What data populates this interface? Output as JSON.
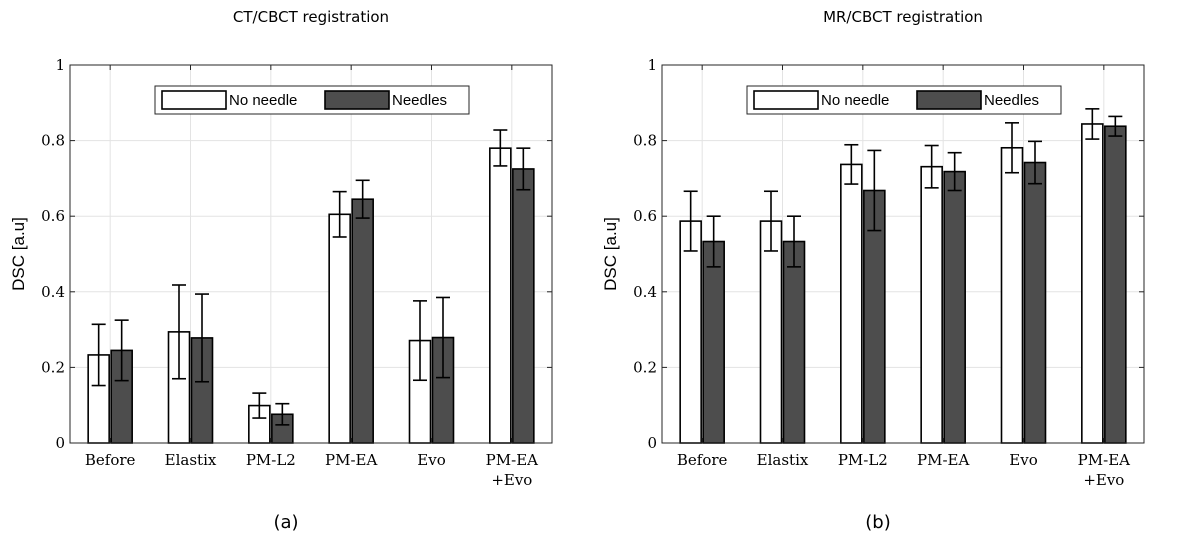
{
  "chart_data": [
    {
      "type": "bar",
      "panel_label": "(a)",
      "title": "CT/CBCT registration",
      "xlabel": "",
      "ylabel": "DSC [a.u]",
      "ylim": [
        0,
        1
      ],
      "yticks": [
        "0",
        "0.2",
        "0.4",
        "0.6",
        "0.8",
        "1"
      ],
      "grid": true,
      "legend": "top-center",
      "categories": [
        [
          "Before"
        ],
        [
          "Elastix"
        ],
        [
          "PM-L2"
        ],
        [
          "PM-EA"
        ],
        [
          "Evo"
        ],
        [
          "PM-EA",
          "+Evo"
        ]
      ],
      "series": [
        {
          "name": "No needle",
          "color": "#ffffff",
          "values": [
            0.233,
            0.294,
            0.099,
            0.605,
            0.271,
            0.78
          ],
          "error_low": [
            0.152,
            0.17,
            0.066,
            0.545,
            0.166,
            0.733
          ],
          "error_high": [
            0.314,
            0.418,
            0.132,
            0.665,
            0.376,
            0.828
          ]
        },
        {
          "name": "Needles",
          "color": "#4d4d4d",
          "values": [
            0.245,
            0.278,
            0.076,
            0.645,
            0.279,
            0.725
          ],
          "error_low": [
            0.165,
            0.162,
            0.048,
            0.595,
            0.173,
            0.67
          ],
          "error_high": [
            0.325,
            0.394,
            0.104,
            0.695,
            0.385,
            0.78
          ]
        }
      ]
    },
    {
      "type": "bar",
      "panel_label": "(b)",
      "title": "MR/CBCT registration",
      "xlabel": "",
      "ylabel": "DSC [a.u]",
      "ylim": [
        0,
        1
      ],
      "yticks": [
        "0",
        "0.2",
        "0.4",
        "0.6",
        "0.8",
        "1"
      ],
      "grid": true,
      "legend": "top-center",
      "categories": [
        [
          "Before"
        ],
        [
          "Elastix"
        ],
        [
          "PM-L2"
        ],
        [
          "PM-EA"
        ],
        [
          "Evo"
        ],
        [
          "PM-EA",
          "+Evo"
        ]
      ],
      "series": [
        {
          "name": "No needle",
          "color": "#ffffff",
          "values": [
            0.587,
            0.587,
            0.737,
            0.731,
            0.781,
            0.844
          ],
          "error_low": [
            0.508,
            0.508,
            0.685,
            0.675,
            0.715,
            0.804
          ],
          "error_high": [
            0.666,
            0.666,
            0.789,
            0.787,
            0.847,
            0.884
          ]
        },
        {
          "name": "Needles",
          "color": "#4d4d4d",
          "values": [
            0.533,
            0.533,
            0.668,
            0.718,
            0.742,
            0.838
          ],
          "error_low": [
            0.466,
            0.466,
            0.562,
            0.668,
            0.686,
            0.812
          ],
          "error_high": [
            0.6,
            0.6,
            0.774,
            0.768,
            0.798,
            0.864
          ]
        }
      ]
    }
  ]
}
